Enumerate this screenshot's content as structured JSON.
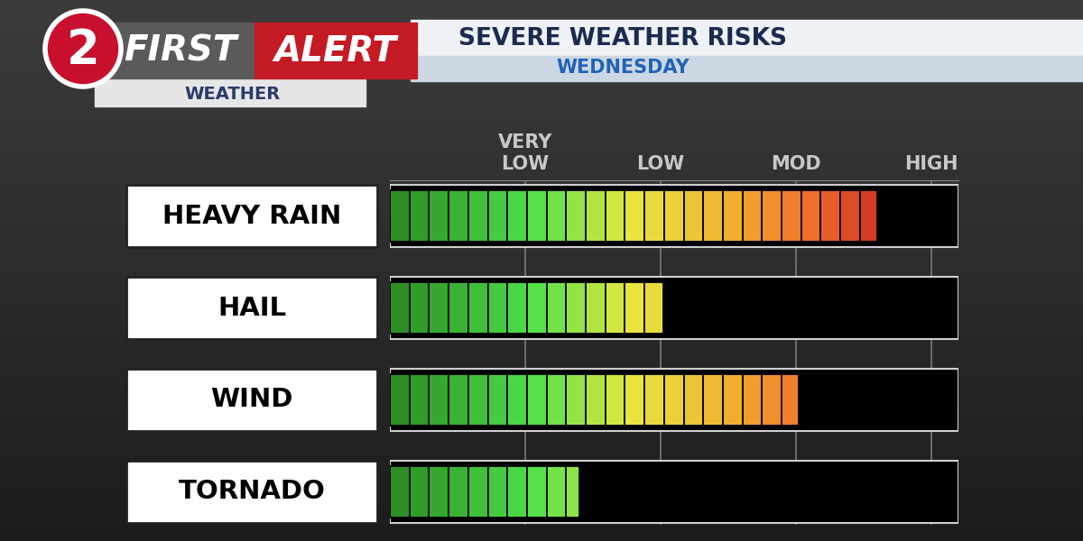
{
  "chart_data": {
    "type": "bar",
    "orientation": "horizontal",
    "title": "SEVERE WEATHER RISKS",
    "subtitle": "WEDNESDAY",
    "annotations": [
      "2",
      "FIRST",
      "ALERT",
      "WEATHER"
    ],
    "categories": [
      "HEAVY RAIN",
      "HAIL",
      "WIND",
      "TORNADO"
    ],
    "values": [
      3.6,
      2.02,
      3.02,
      1.4
    ],
    "xlim": [
      0,
      4.2
    ],
    "xticks": [
      {
        "value": 1,
        "label": "VERY\nLOW"
      },
      {
        "value": 2,
        "label": "LOW"
      },
      {
        "value": 3,
        "label": "MOD"
      },
      {
        "value": 4,
        "label": "HIGH"
      }
    ],
    "grid": true
  }
}
